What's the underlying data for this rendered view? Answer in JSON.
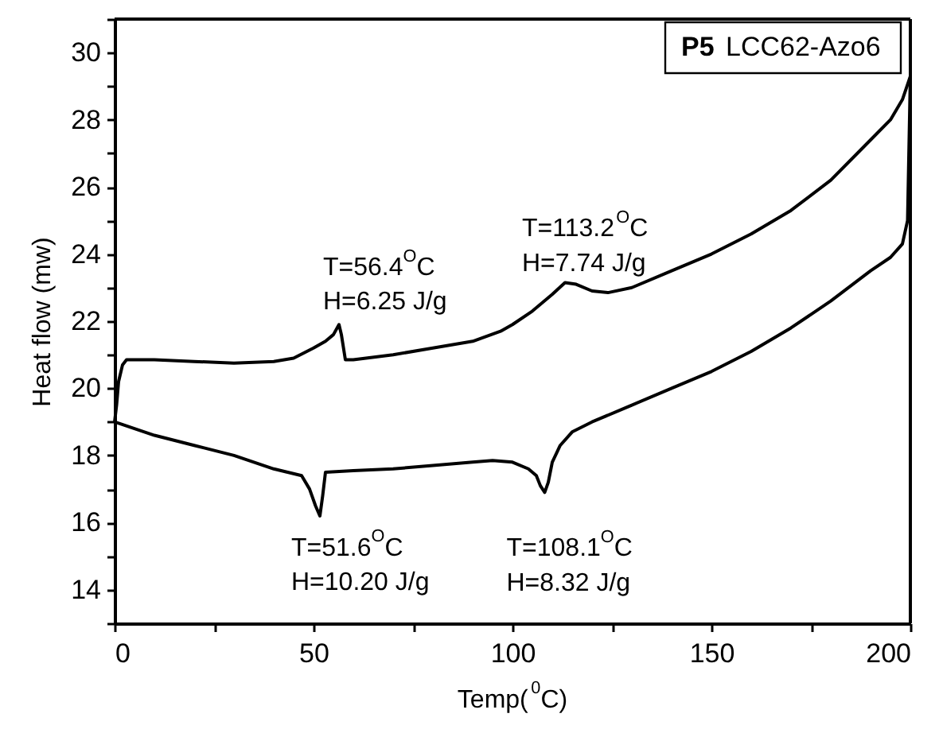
{
  "chart_data": {
    "type": "line",
    "title": "P5 LCC62-Azo6",
    "xlabel": "Temp($^{0}$C)",
    "ylabel": "Heat flow (mw)",
    "xlim": [
      0,
      200
    ],
    "ylim": [
      13,
      31
    ],
    "xticks": [
      0,
      {
        "value": 25,
        "label": null
      },
      50,
      {
        "value": 75,
        "label": null
      },
      100,
      {
        "value": 125,
        "label": null
      },
      150,
      {
        "value": 175,
        "label": null
      },
      200
    ],
    "yticks": [
      {
        "value": 13,
        "label": null
      },
      14,
      {
        "value": 15,
        "label": null
      },
      16,
      {
        "value": 17,
        "label": null
      },
      18,
      {
        "value": 19,
        "label": null
      },
      20,
      {
        "value": 21,
        "label": null
      },
      22,
      {
        "value": 23,
        "label": null
      },
      24,
      {
        "value": 25,
        "label": null
      },
      26,
      {
        "value": 27,
        "label": null
      },
      28,
      {
        "value": 29,
        "label": null
      },
      30,
      {
        "value": 31,
        "label": null
      }
    ],
    "grid": false,
    "marker": "none",
    "line_style": "solid",
    "series": [
      {
        "color": "#000000",
        "x": [
          0,
          0.5,
          1,
          2,
          3,
          5,
          10,
          20,
          30,
          40,
          45,
          50,
          53,
          55,
          56.4,
          57,
          58,
          60,
          70,
          80,
          90,
          97,
          100,
          105,
          110,
          113.2,
          116,
          120,
          124,
          130,
          140,
          150,
          160,
          170,
          180,
          190,
          195,
          198,
          200
        ],
        "values": [
          19.0,
          19.5,
          20.2,
          20.7,
          20.85,
          20.85,
          20.85,
          20.8,
          20.75,
          20.8,
          20.9,
          21.2,
          21.4,
          21.6,
          21.9,
          21.6,
          20.85,
          20.85,
          21.0,
          21.2,
          21.4,
          21.7,
          21.9,
          22.3,
          22.8,
          23.15,
          23.1,
          22.9,
          22.85,
          23.0,
          23.5,
          24.0,
          24.6,
          25.3,
          26.2,
          27.4,
          28.0,
          28.6,
          29.3
        ]
      },
      {
        "color": "#000000",
        "x": [
          0,
          10,
          20,
          30,
          40,
          47,
          49,
          50.5,
          51.6,
          52.3,
          53,
          60,
          70,
          80,
          90,
          95,
          100,
          104,
          106,
          107,
          108.1,
          109,
          110,
          112,
          115,
          120,
          130,
          140,
          150,
          160,
          170,
          180,
          190,
          195,
          198,
          199.3,
          200
        ],
        "values": [
          19.0,
          18.6,
          18.3,
          18.0,
          17.6,
          17.4,
          17.0,
          16.5,
          16.2,
          16.8,
          17.5,
          17.55,
          17.6,
          17.7,
          17.8,
          17.85,
          17.8,
          17.6,
          17.4,
          17.1,
          16.9,
          17.2,
          17.8,
          18.3,
          18.7,
          19.0,
          19.5,
          20.0,
          20.5,
          21.1,
          21.8,
          22.6,
          23.5,
          23.9,
          24.3,
          25.0,
          29.3
        ]
      }
    ],
    "annotations": [
      {
        "text": "T=56.4$^{O}$C\nH=6.25 J/g",
        "x": 56.4,
        "y": 21.9
      },
      {
        "text": "T=113.2$^{O}$C\nH=7.74 J/g",
        "x": 113.2,
        "y": 23.15
      },
      {
        "text": "T=51.6$^{O}$C\nH=10.20 J/g",
        "x": 51.6,
        "y": 16.2
      },
      {
        "text": "T=108.1$^{O}$C\nH=8.32 J/g",
        "x": 108.1,
        "y": 16.9
      }
    ]
  }
}
